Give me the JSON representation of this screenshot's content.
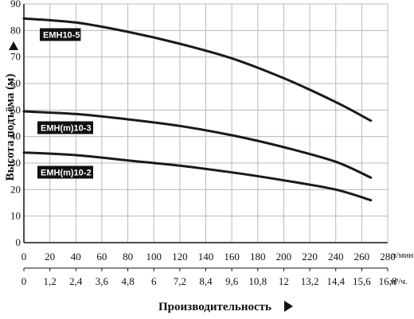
{
  "chart_data": {
    "type": "line",
    "xlabel": "Производительность",
    "ylabel": "Высота подъёма (м)",
    "x_unit_primary": "л/мин.",
    "x_unit_secondary": "м³/ч.",
    "x_ticks_primary": [
      "0",
      "20",
      "40",
      "60",
      "80",
      "100",
      "120",
      "140",
      "160",
      "180",
      "200",
      "220",
      "240",
      "260",
      "280"
    ],
    "x_ticks_secondary": [
      "0",
      "1,2",
      "2,4",
      "3,6",
      "4,8",
      "6",
      "7,2",
      "8,4",
      "9,6",
      "10,8",
      "12",
      "13,2",
      "14,4",
      "15,6",
      "16,8"
    ],
    "y_ticks": [
      "0",
      "10",
      "20",
      "30",
      "40",
      "50",
      "60",
      "70",
      "80",
      "90"
    ],
    "xlim": [
      0,
      280
    ],
    "ylim": [
      0,
      90
    ],
    "grid": true,
    "colors": {
      "line": "#1a1a1a",
      "grid": "#b8b8b8",
      "label_bg": "#111111"
    },
    "series": [
      {
        "name": "EMH10-5",
        "x": [
          0,
          40,
          80,
          120,
          160,
          200,
          240,
          267
        ],
        "values": [
          84.5,
          83,
          79.5,
          75,
          69.5,
          62,
          53,
          46
        ]
      },
      {
        "name": "EMH(m)10-3",
        "x": [
          0,
          40,
          80,
          120,
          160,
          200,
          240,
          267
        ],
        "values": [
          49.5,
          48.5,
          46.5,
          44,
          40.5,
          36,
          30.5,
          24.5
        ]
      },
      {
        "name": "EMH(m)10-2",
        "x": [
          0,
          40,
          80,
          120,
          160,
          200,
          240,
          267
        ],
        "values": [
          34,
          33,
          31,
          29,
          26.5,
          23.5,
          20,
          16
        ]
      }
    ]
  }
}
